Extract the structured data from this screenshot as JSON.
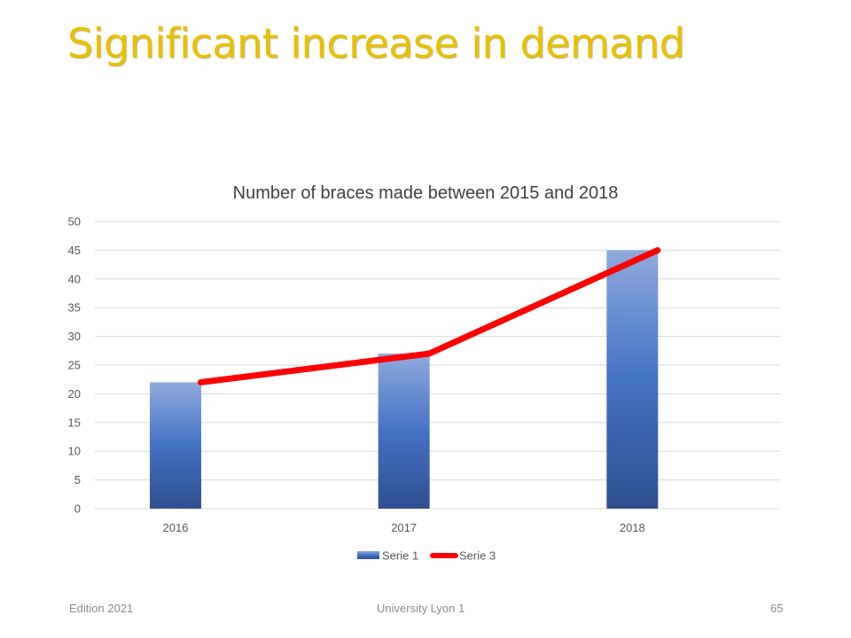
{
  "slide": {
    "title": "Significant increase in demand"
  },
  "footer": {
    "edition": "Edition 2021",
    "institution": "University Lyon 1",
    "page_number": "65"
  },
  "colors": {
    "title": "#e8c000",
    "bar_top": "#8faadc",
    "bar_mid": "#4472c4",
    "bar_bottom": "#2f4f8f",
    "line": "#ff0000",
    "grid": "#d9d9d9",
    "axis_text": "#595959"
  },
  "chart_data": {
    "type": "bar",
    "title": "Number of braces made between 2015 and 2018",
    "categories": [
      "2016",
      "2017",
      "2018"
    ],
    "ylim": [
      0,
      50
    ],
    "yticks": [
      0,
      5,
      10,
      15,
      20,
      25,
      30,
      35,
      40,
      45,
      50
    ],
    "grid": true,
    "legend_position": "bottom",
    "series": [
      {
        "name": "Serie 1",
        "type": "bar",
        "values": [
          22,
          27,
          45
        ]
      },
      {
        "name": "Serie 3",
        "type": "line",
        "values": [
          22,
          27,
          45
        ]
      }
    ]
  }
}
